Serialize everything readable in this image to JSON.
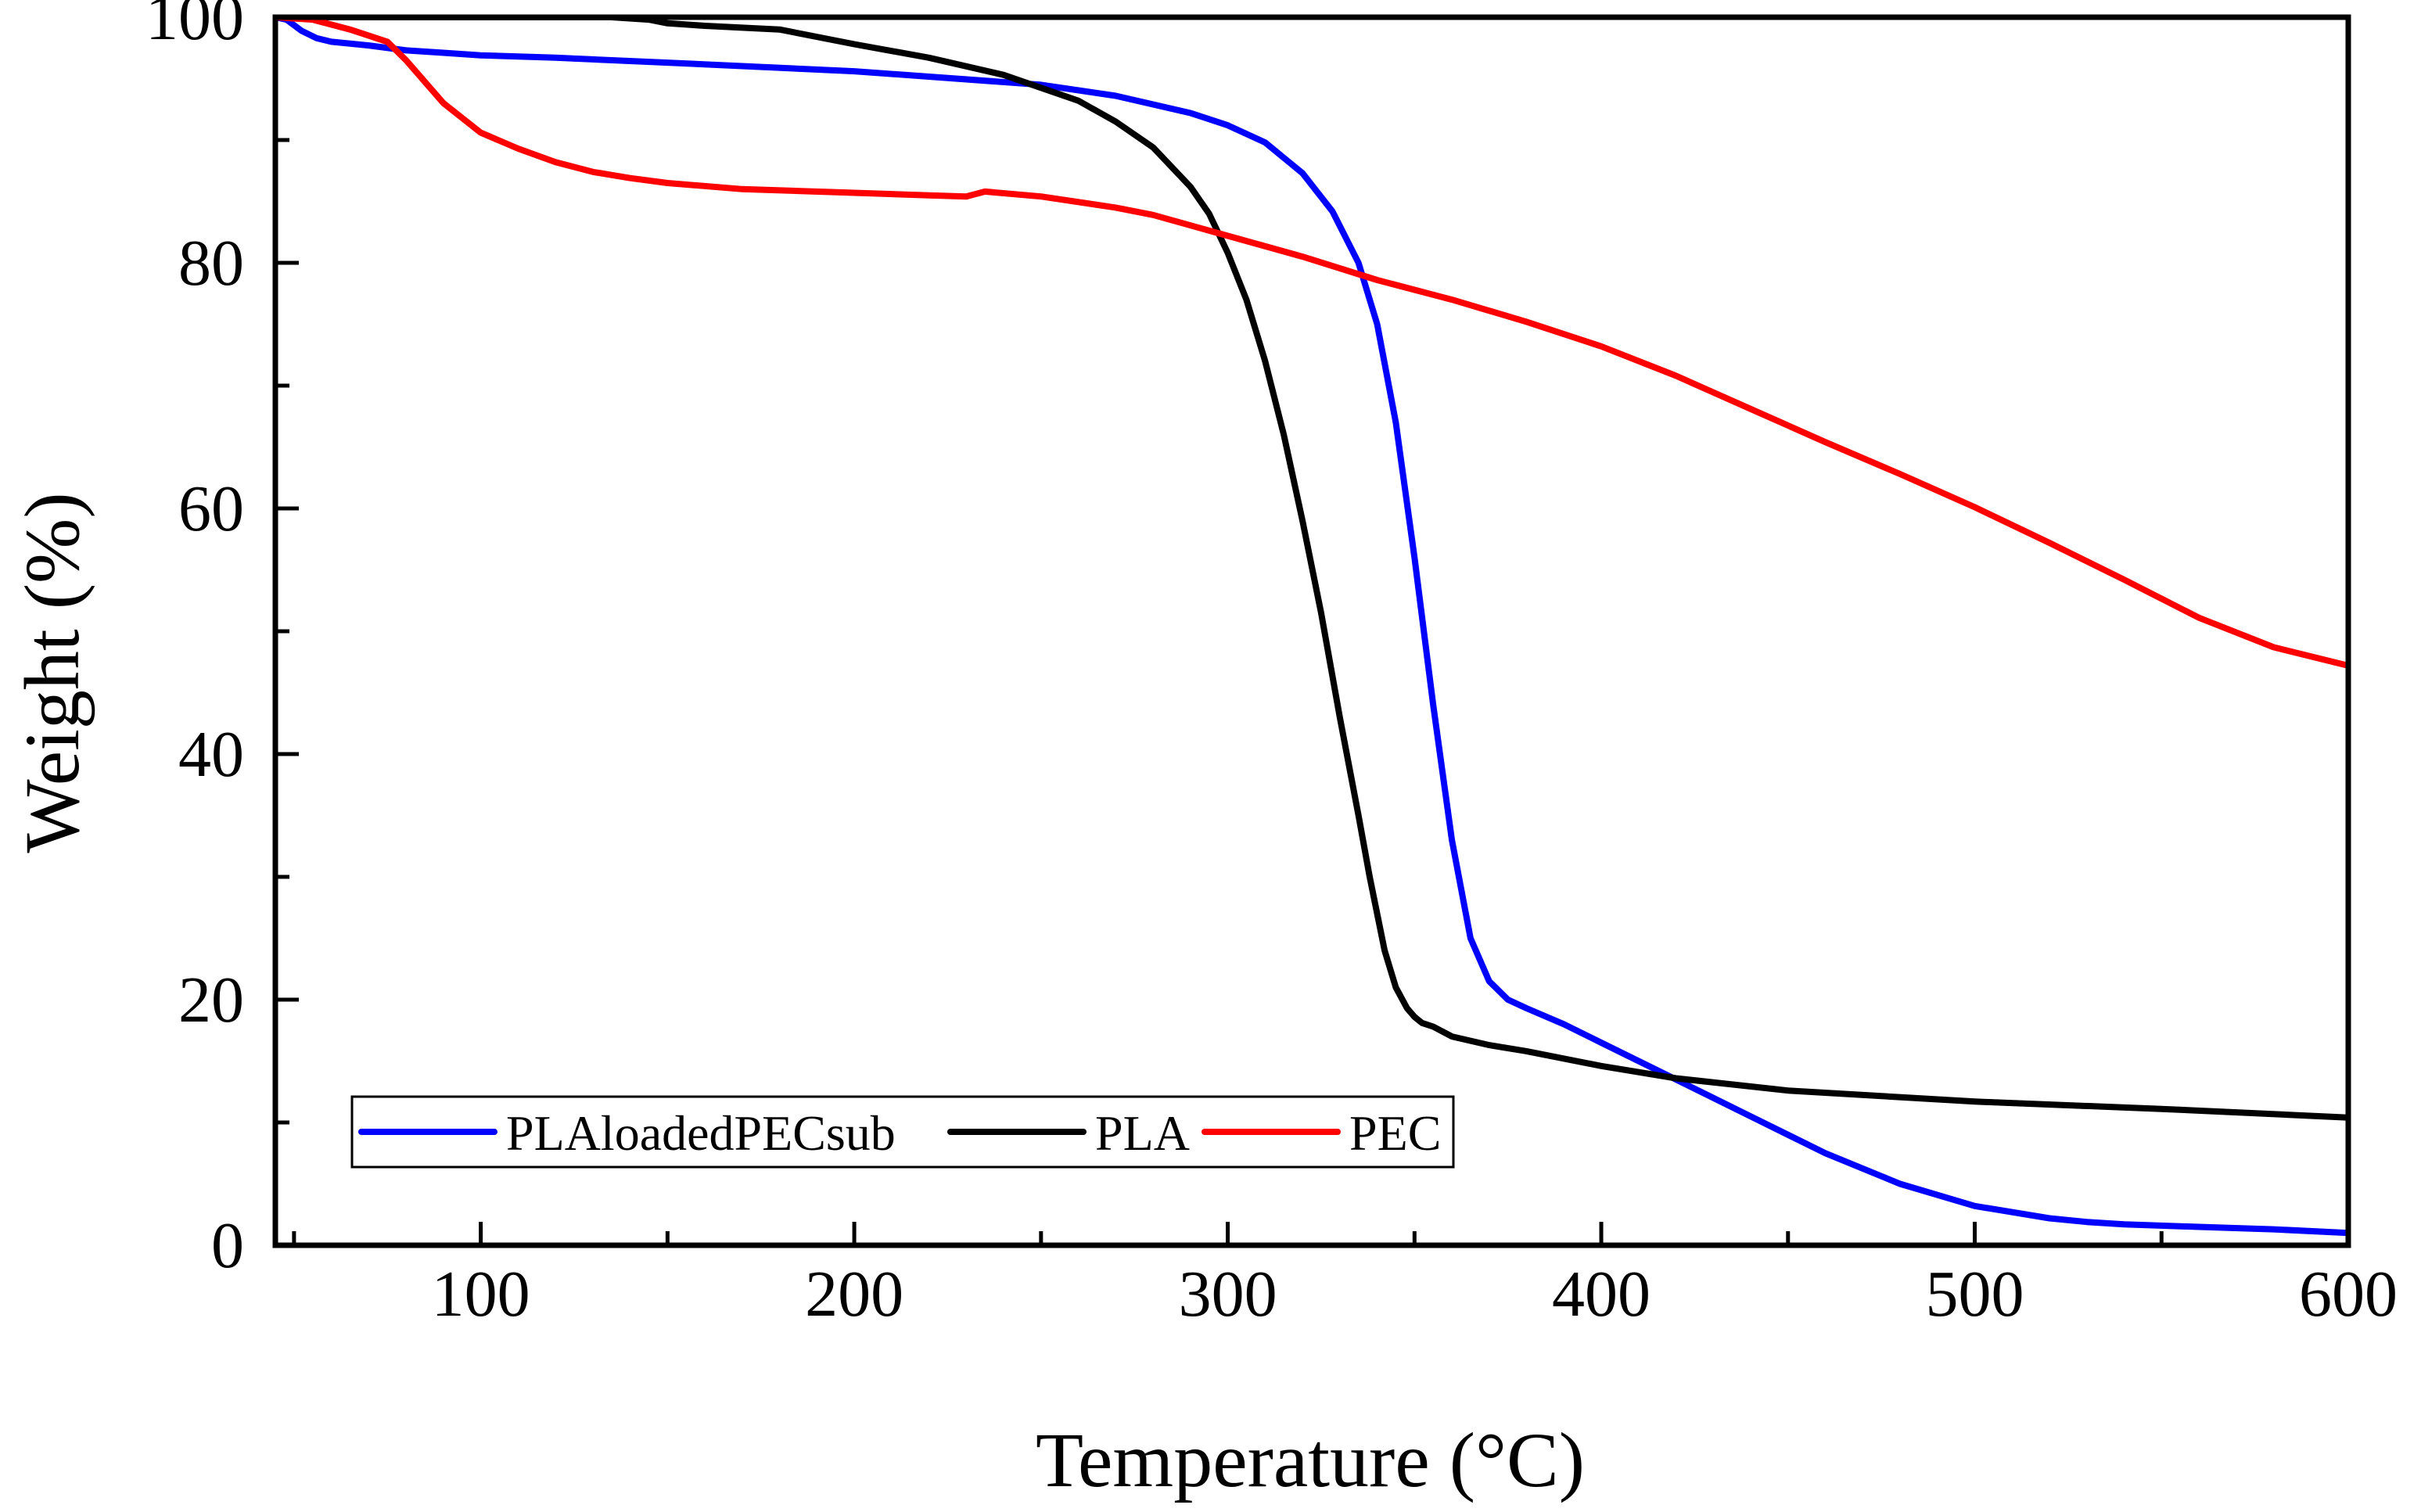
{
  "chart_data": {
    "type": "line",
    "title": "",
    "xlabel": "Temperature (°C)",
    "ylabel": "Weight (%)",
    "xlim": [
      45,
      600
    ],
    "ylim": [
      0,
      100
    ],
    "xticks": [
      100,
      200,
      300,
      400,
      500,
      600
    ],
    "yticks": [
      0,
      20,
      40,
      60,
      80,
      100
    ],
    "x_tick_labels": [
      "100",
      "200",
      "300",
      "400",
      "500",
      "600"
    ],
    "y_tick_labels": [
      "0",
      "20",
      "40",
      "60",
      "80",
      "100"
    ],
    "grid": false,
    "legend": {
      "position": "bottom-left",
      "orientation": "horizontal"
    },
    "series": [
      {
        "name": "PLAloadedPECsub",
        "color": "#0000ff",
        "x": [
          45,
          48,
          52,
          56,
          60,
          70,
          80,
          90,
          100,
          120,
          150,
          200,
          250,
          270,
          290,
          300,
          310,
          320,
          328,
          335,
          340,
          345,
          350,
          355,
          360,
          365,
          370,
          375,
          380,
          390,
          400,
          420,
          440,
          460,
          480,
          500,
          520,
          530,
          540,
          560,
          580,
          600
        ],
        "y": [
          100,
          99.8,
          98.9,
          98.3,
          98,
          97.7,
          97.3,
          97.1,
          96.9,
          96.7,
          96.3,
          95.6,
          94.5,
          93.6,
          92.2,
          91.2,
          89.8,
          87.3,
          84.2,
          80,
          75,
          67,
          56,
          44,
          33,
          25,
          21.5,
          20,
          19.3,
          18,
          16.5,
          13.5,
          10.5,
          7.5,
          5,
          3.2,
          2.2,
          1.9,
          1.7,
          1.5,
          1.3,
          1
        ]
      },
      {
        "name": "PLA",
        "color": "#000000",
        "x": [
          45,
          60,
          80,
          100,
          120,
          135,
          145,
          150,
          160,
          180,
          200,
          220,
          240,
          260,
          270,
          280,
          290,
          295,
          300,
          305,
          310,
          315,
          320,
          325,
          330,
          335,
          338,
          342,
          345,
          348,
          350,
          352,
          355,
          360,
          370,
          380,
          400,
          420,
          450,
          500,
          550,
          600
        ],
        "y": [
          100,
          100,
          100,
          100,
          100,
          100,
          99.8,
          99.5,
          99.3,
          99,
          97.8,
          96.7,
          95.3,
          93.2,
          91.5,
          89.4,
          86.2,
          84,
          80.8,
          77,
          72,
          66,
          59,
          51.5,
          43,
          35,
          30,
          24,
          21,
          19.3,
          18.6,
          18.1,
          17.8,
          17,
          16.3,
          15.8,
          14.6,
          13.6,
          12.6,
          11.7,
          11.1,
          10.4
        ]
      },
      {
        "name": "PEC",
        "color": "#ff0000",
        "x": [
          45,
          55,
          65,
          75,
          80,
          90,
          100,
          110,
          120,
          130,
          140,
          150,
          170,
          200,
          220,
          230,
          235,
          250,
          270,
          280,
          300,
          320,
          340,
          360,
          380,
          400,
          420,
          440,
          460,
          480,
          500,
          520,
          540,
          560,
          580,
          600
        ],
        "y": [
          100,
          99.8,
          99,
          98,
          96.5,
          93,
          90.6,
          89.3,
          88.2,
          87.4,
          86.9,
          86.5,
          86,
          85.7,
          85.5,
          85.4,
          85.8,
          85.4,
          84.5,
          83.9,
          82.2,
          80.5,
          78.6,
          77,
          75.2,
          73.2,
          70.8,
          68.1,
          65.4,
          62.8,
          60.1,
          57.2,
          54.2,
          51.1,
          48.7,
          47.2
        ]
      }
    ]
  }
}
